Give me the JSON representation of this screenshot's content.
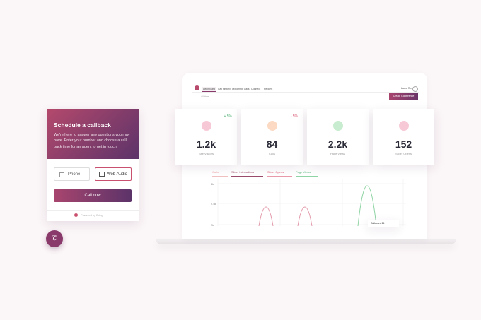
{
  "callback_widget": {
    "title": "Schedule a callback",
    "description": "We're here to answer any questions you may have. Enter your number and choose a call back time for an agent to get in touch.",
    "options": [
      "Phone",
      "Web Audio"
    ],
    "button": "Call now",
    "footer": "Powered by Bring"
  },
  "dashboard": {
    "nav": [
      "Dashboard",
      "Call History",
      "Upcoming Calls",
      "Connect",
      "Reports"
    ],
    "user": "Laura Rex",
    "action": "Create Conference",
    "filter": "All time",
    "stats": [
      {
        "value": "1.2k",
        "label": "Site Visitors",
        "change": "+ 5%"
      },
      {
        "value": "84",
        "label": "Calls",
        "change": "- 5%"
      },
      {
        "value": "2.2k",
        "label": "Page Views"
      },
      {
        "value": "152",
        "label": "Slider Opens"
      }
    ],
    "chart_tabs": [
      "Calls",
      "Slider Interactions",
      "Slider Opens",
      "Page Views"
    ],
    "y_labels": [
      "3k",
      "2.5k",
      "2k"
    ],
    "tooltip": "Callcount 24"
  }
}
